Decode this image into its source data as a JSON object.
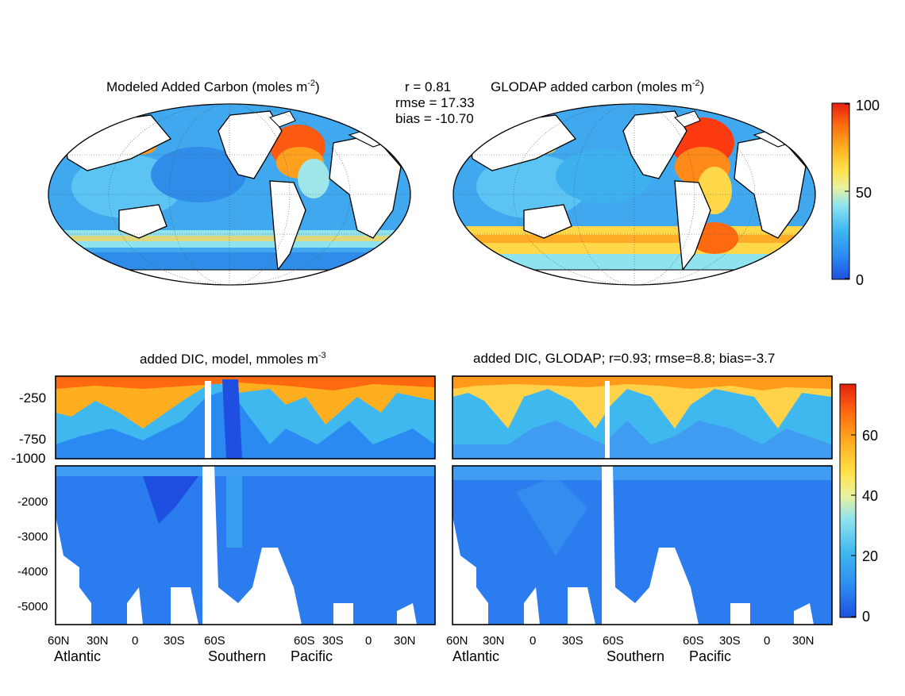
{
  "colors": {
    "jet": [
      "#1f4fe0",
      "#2b8af2",
      "#3fb8f0",
      "#8fe3ef",
      "#e8f2a0",
      "#ffe24a",
      "#ffae1f",
      "#ff6a10",
      "#e42010"
    ],
    "land": "#ffffff",
    "coast": "#000000",
    "frame": "#000000"
  },
  "top": {
    "left_title_main": "Modeled Added Carbon (moles m",
    "left_title_exp": "-2",
    "left_title_close": ")",
    "right_title_main": "GLODAP added carbon (moles m",
    "right_title_exp": "-2",
    "right_title_close": ")",
    "stats_r": "r = 0.81",
    "stats_rmse": "rmse = 17.33",
    "stats_bias": "bias = -10.70",
    "colorbar_ticks": [
      "100",
      "50",
      "0"
    ]
  },
  "bottom": {
    "left_title_main": "added DIC, model, mmoles m",
    "left_title_exp": "-3",
    "right_title": "added DIC, GLODAP; r=0.93; rmse=8.8; bias=-3.7",
    "upper_y_ticks": [
      "-250",
      "-750",
      "-1000"
    ],
    "lower_y_ticks": [
      "-2000",
      "-3000",
      "-4000",
      "-5000"
    ],
    "x_ticks": [
      "60N",
      "30N",
      "0",
      "30S",
      "60S",
      "60S",
      "30S",
      "0",
      "30N"
    ],
    "basins": [
      "Atlantic",
      "Southern",
      "Pacific"
    ],
    "colorbar_ticks": [
      "60",
      "40",
      "20",
      "0"
    ]
  },
  "chart_data": [
    {
      "type": "heatmap",
      "title": "Modeled Added Carbon (moles m-2)",
      "projection": "mollweide world map",
      "colorbar_range": [
        0,
        100
      ],
      "colorbar_ticks": [
        0,
        50,
        100
      ],
      "annotations": [
        "r = 0.81",
        "rmse = 17.33",
        "bias = -10.70"
      ]
    },
    {
      "type": "heatmap",
      "title": "GLODAP added carbon (moles m-2)",
      "projection": "mollweide world map",
      "colorbar_range": [
        0,
        100
      ],
      "colorbar_ticks": [
        0,
        50,
        100
      ]
    },
    {
      "type": "heatmap",
      "title": "added DIC, model, mmoles m-3",
      "x_tick_labels": [
        "60N",
        "30N",
        "0",
        "30S",
        "60S",
        "60S",
        "30S",
        "0",
        "30N"
      ],
      "basins": [
        "Atlantic",
        "Southern",
        "Pacific"
      ],
      "y_ticks_upper": [
        -250,
        -750,
        -1000
      ],
      "y_ticks_lower": [
        -2000,
        -3000,
        -4000,
        -5000
      ],
      "ylim": [
        -5500,
        0
      ],
      "colorbar_range": [
        0,
        75
      ],
      "colorbar_ticks": [
        0,
        20,
        40,
        60
      ]
    },
    {
      "type": "heatmap",
      "title": "added DIC, GLODAP; r=0.93; rmse=8.8; bias=-3.7",
      "x_tick_labels": [
        "60N",
        "30N",
        "0",
        "30S",
        "60S",
        "60S",
        "30S",
        "0",
        "30N"
      ],
      "basins": [
        "Atlantic",
        "Southern",
        "Pacific"
      ],
      "ylim": [
        -5500,
        0
      ],
      "colorbar_range": [
        0,
        75
      ],
      "colorbar_ticks": [
        0,
        20,
        40,
        60
      ]
    }
  ]
}
